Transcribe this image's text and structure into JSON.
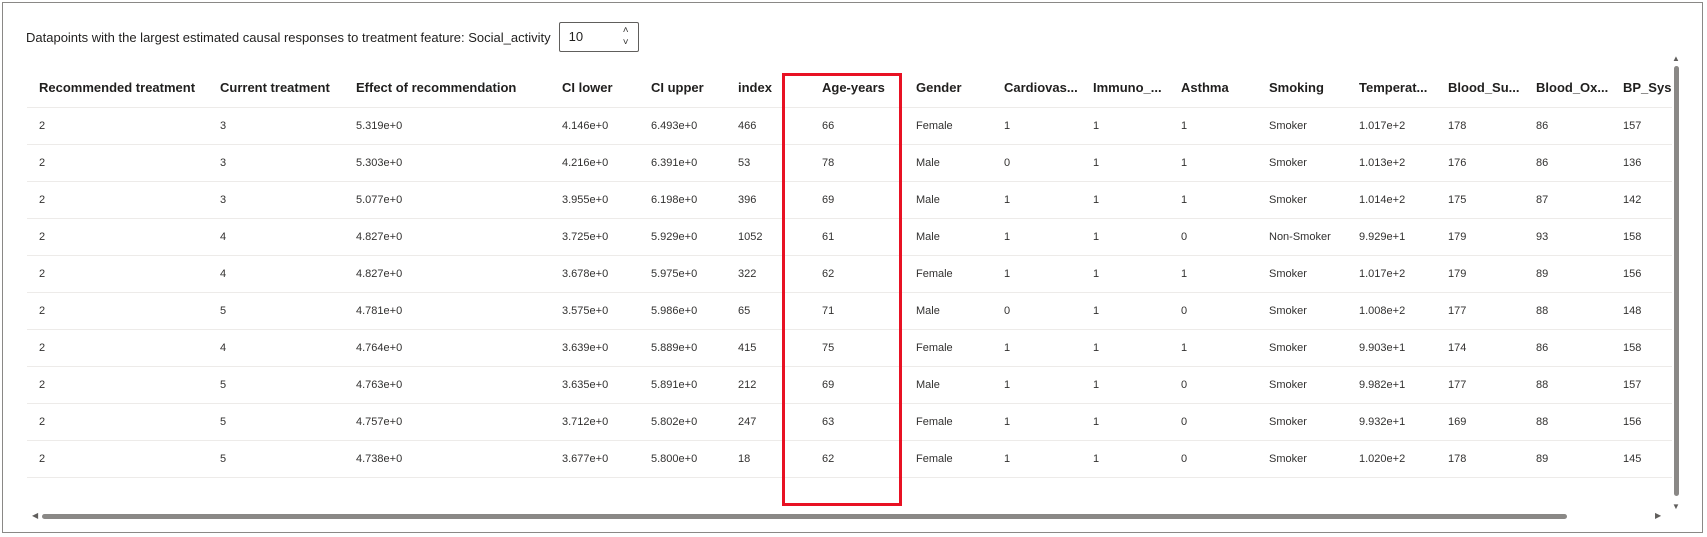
{
  "topbar": {
    "label": "Datapoints with the largest estimated causal responses to treatment feature: Social_activity",
    "count_value": "10"
  },
  "icons": {
    "spin_up": "chevron-up-icon",
    "spin_down": "chevron-down-icon"
  },
  "highlight_color": "#e81123",
  "columns": [
    "Recommended treatment",
    "Current treatment",
    "Effect of recommendation",
    "CI lower",
    "CI upper",
    "index",
    "Age-years",
    "Gender",
    "Cardiovas...",
    "Immuno_...",
    "Asthma",
    "Smoking",
    "Temperat...",
    "Blood_Su...",
    "Blood_Ox...",
    "BP_Sys"
  ],
  "rows": [
    [
      "2",
      "3",
      "5.319e+0",
      "4.146e+0",
      "6.493e+0",
      "466",
      "66",
      "Female",
      "1",
      "1",
      "1",
      "Smoker",
      "1.017e+2",
      "178",
      "86",
      "157"
    ],
    [
      "2",
      "3",
      "5.303e+0",
      "4.216e+0",
      "6.391e+0",
      "53",
      "78",
      "Male",
      "0",
      "1",
      "1",
      "Smoker",
      "1.013e+2",
      "176",
      "86",
      "136"
    ],
    [
      "2",
      "3",
      "5.077e+0",
      "3.955e+0",
      "6.198e+0",
      "396",
      "69",
      "Male",
      "1",
      "1",
      "1",
      "Smoker",
      "1.014e+2",
      "175",
      "87",
      "142"
    ],
    [
      "2",
      "4",
      "4.827e+0",
      "3.725e+0",
      "5.929e+0",
      "1052",
      "61",
      "Male",
      "1",
      "1",
      "0",
      "Non-Smoker",
      "9.929e+1",
      "179",
      "93",
      "158"
    ],
    [
      "2",
      "4",
      "4.827e+0",
      "3.678e+0",
      "5.975e+0",
      "322",
      "62",
      "Female",
      "1",
      "1",
      "1",
      "Smoker",
      "1.017e+2",
      "179",
      "89",
      "156"
    ],
    [
      "2",
      "5",
      "4.781e+0",
      "3.575e+0",
      "5.986e+0",
      "65",
      "71",
      "Male",
      "0",
      "1",
      "0",
      "Smoker",
      "1.008e+2",
      "177",
      "88",
      "148"
    ],
    [
      "2",
      "4",
      "4.764e+0",
      "3.639e+0",
      "5.889e+0",
      "415",
      "75",
      "Female",
      "1",
      "1",
      "1",
      "Smoker",
      "9.903e+1",
      "174",
      "86",
      "158"
    ],
    [
      "2",
      "5",
      "4.763e+0",
      "3.635e+0",
      "5.891e+0",
      "212",
      "69",
      "Male",
      "1",
      "1",
      "0",
      "Smoker",
      "9.982e+1",
      "177",
      "88",
      "157"
    ],
    [
      "2",
      "5",
      "4.757e+0",
      "3.712e+0",
      "5.802e+0",
      "247",
      "63",
      "Female",
      "1",
      "1",
      "0",
      "Smoker",
      "9.932e+1",
      "169",
      "88",
      "156"
    ],
    [
      "2",
      "5",
      "4.738e+0",
      "3.677e+0",
      "5.800e+0",
      "18",
      "62",
      "Female",
      "1",
      "1",
      "0",
      "Smoker",
      "1.020e+2",
      "178",
      "89",
      "145"
    ]
  ]
}
